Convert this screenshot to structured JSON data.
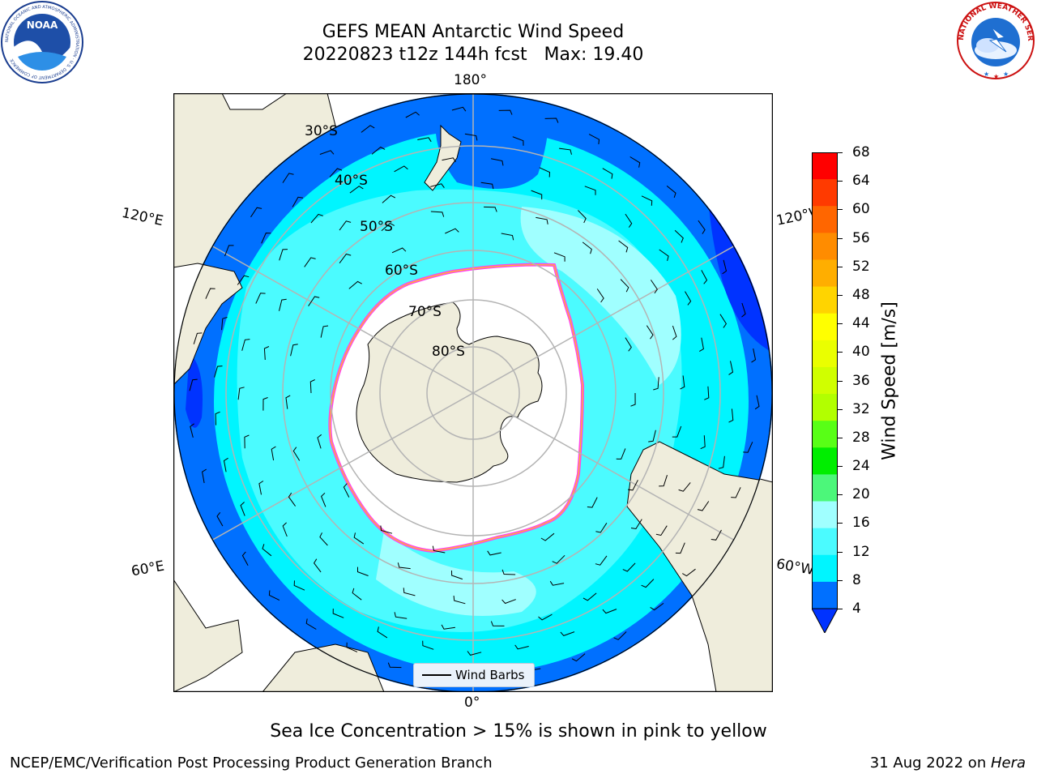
{
  "header": {
    "title_line1": "GEFS MEAN Antarctic Wind Speed",
    "title_line2": "20220823 t12z 144h fcst   Max: 19.40"
  },
  "logos": {
    "left": "noaa-logo",
    "right": "nws-logo",
    "left_text": "NOAA",
    "left_ring_text": "NATIONAL OCEANIC AND ATMOSPHERIC ADMINISTRATION · U.S. DEPARTMENT OF COMMERCE",
    "right_ring_text": "NATIONAL WEATHER SERVICE"
  },
  "map": {
    "projection": "south-polar-stereographic",
    "longitude_labels": {
      "top": "180°",
      "bottom": "0°",
      "upper_left": "120°E",
      "upper_right": "120°W",
      "lower_left": "60°E",
      "lower_right": "60°W"
    },
    "latitude_labels": [
      "30°S",
      "40°S",
      "50°S",
      "60°S",
      "70°S",
      "80°S"
    ],
    "legend_label": "Wind Barbs",
    "colors": {
      "land": "#efeddc",
      "ice": "#ffffff",
      "c4": "#0033ff",
      "c8": "#0070ff",
      "c12": "#00f5ff",
      "c16": "#4bfbff",
      "c20": "#a0ffff",
      "ice_edge": "#ff44ee",
      "ice_edge_inner": "#ffc21a",
      "grid": "#b4b4b4"
    }
  },
  "colorbar": {
    "label": "Wind Speed [m/s]",
    "ticks": [
      "68",
      "64",
      "60",
      "56",
      "52",
      "48",
      "44",
      "40",
      "36",
      "32",
      "28",
      "24",
      "20",
      "16",
      "12",
      "8",
      "4"
    ],
    "colors": [
      "#ff0000",
      "#ff3a00",
      "#ff6600",
      "#ff8c00",
      "#ffae00",
      "#ffd400",
      "#ffff00",
      "#eaff00",
      "#d0ff00",
      "#b2ff00",
      "#58ff16",
      "#00ee00",
      "#4cf77a",
      "#a0ffff",
      "#4bfbff",
      "#00f5ff",
      "#0070ff"
    ],
    "extend_color": "#0033ff"
  },
  "footer": {
    "note": "Sea Ice Concentration > 15% is shown in pink to yellow",
    "left": "NCEP/EMC/Verification Post Processing Product Generation Branch",
    "right_prefix": "31 Aug 2022 on ",
    "right_host": "Hera"
  }
}
